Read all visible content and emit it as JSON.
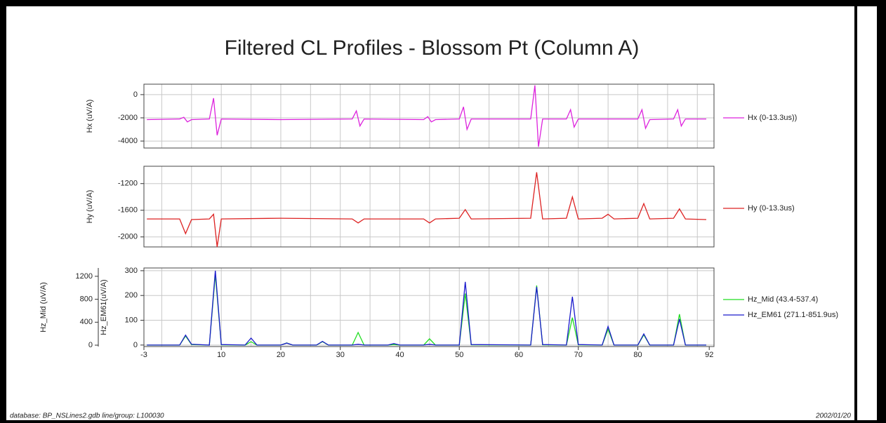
{
  "header": {
    "title": "Filtered CL Profiles - Blossom Pt (Column A)"
  },
  "footer": {
    "left": "database: BP_NSLines2.gdb  line/group: L100030",
    "right": "2002/01/20"
  },
  "chart_data": [
    {
      "type": "line",
      "ylabel": "Hx (uV/A)",
      "xlim": [
        -3,
        92.8
      ],
      "x_grid": [
        0,
        5,
        10,
        15,
        20,
        25,
        30,
        35,
        40,
        45,
        50,
        55,
        60,
        65,
        70,
        75,
        80,
        85,
        90
      ],
      "ylim": [
        -4600,
        900
      ],
      "yticks": [
        0,
        -2000,
        -4000
      ],
      "grid": true,
      "x": [
        -2.5,
        3,
        3.7,
        4.3,
        5,
        8,
        8.7,
        9.3,
        10,
        20,
        32,
        32.7,
        33.3,
        34,
        44,
        44.7,
        45.3,
        46,
        50,
        50.7,
        51.3,
        52,
        62,
        62.7,
        63.3,
        64,
        68,
        68.7,
        69.3,
        70,
        80,
        80.7,
        81.3,
        82,
        86,
        86.7,
        87.3,
        88,
        91.5
      ],
      "series": [
        {
          "name": "Hx (0-13.3us))",
          "color": "#dd22dd",
          "values": [
            -2150,
            -2100,
            -1950,
            -2350,
            -2150,
            -2100,
            -300,
            -3500,
            -2100,
            -2150,
            -2100,
            -1400,
            -2700,
            -2100,
            -2150,
            -1900,
            -2350,
            -2150,
            -2100,
            -1050,
            -3000,
            -2100,
            -2100,
            800,
            -4500,
            -2100,
            -2100,
            -1300,
            -2800,
            -2100,
            -2100,
            -1300,
            -2900,
            -2150,
            -2100,
            -1300,
            -2700,
            -2100,
            -2100
          ]
        }
      ]
    },
    {
      "type": "line",
      "ylabel": "Hy (uV/A)",
      "xlim": [
        -3,
        92.8
      ],
      "x_grid": [
        0,
        5,
        10,
        15,
        20,
        25,
        30,
        35,
        40,
        45,
        50,
        55,
        60,
        65,
        70,
        75,
        80,
        85,
        90
      ],
      "ylim": [
        -2150,
        -940
      ],
      "yticks": [
        -1200,
        -1600,
        -2000
      ],
      "grid": true,
      "x": [
        -2.5,
        3,
        4,
        5,
        8,
        8.7,
        9.3,
        10,
        20,
        32,
        33,
        34,
        44,
        45,
        46,
        50,
        51,
        52,
        62,
        63,
        64,
        68,
        69,
        70,
        74,
        75,
        76,
        80,
        81,
        82,
        86,
        87,
        88,
        91.5
      ],
      "series": [
        {
          "name": "Hy (0-13.3us)",
          "color": "#dd2222",
          "values": [
            -1730,
            -1730,
            -1950,
            -1740,
            -1730,
            -1660,
            -2150,
            -1730,
            -1720,
            -1730,
            -1790,
            -1730,
            -1730,
            -1790,
            -1730,
            -1720,
            -1590,
            -1730,
            -1720,
            -1030,
            -1730,
            -1720,
            -1400,
            -1730,
            -1720,
            -1660,
            -1730,
            -1720,
            -1500,
            -1730,
            -1720,
            -1580,
            -1730,
            -1740
          ]
        }
      ]
    },
    {
      "type": "line",
      "ylabel": "Hz_EM61(uV/A)",
      "y2label": "Hz_Mid (uV/A)",
      "xlim": [
        -3,
        92.8
      ],
      "xticks": [
        -3,
        10,
        20,
        30,
        40,
        50,
        60,
        70,
        80,
        92
      ],
      "x_grid": [
        0,
        5,
        10,
        15,
        20,
        25,
        30,
        35,
        40,
        45,
        50,
        55,
        60,
        65,
        70,
        75,
        80,
        85,
        90
      ],
      "ylim": [
        -6,
        311
      ],
      "yticks": [
        0,
        100,
        200,
        300
      ],
      "y2lim": [
        -24,
        1345
      ],
      "y2ticks": [
        0,
        400,
        800,
        1200
      ],
      "grid": true,
      "x": [
        -2.5,
        3,
        4,
        5,
        8,
        9,
        10,
        14,
        15,
        16,
        20,
        21,
        22,
        26,
        27,
        28,
        32,
        33,
        34,
        38,
        39,
        40,
        44,
        45,
        46,
        50,
        51,
        52,
        62,
        63,
        64,
        68,
        69,
        70,
        74,
        75,
        76,
        80,
        81,
        82,
        86,
        87,
        88,
        91.5
      ],
      "series": [
        {
          "name": "Hz_Mid (43.4-537.4)",
          "color": "#22dd22",
          "axis": "y2",
          "values": [
            0,
            0,
            160,
            10,
            0,
            1230,
            5,
            0,
            60,
            0,
            0,
            40,
            0,
            0,
            60,
            0,
            0,
            220,
            0,
            0,
            10,
            0,
            0,
            110,
            0,
            0,
            900,
            5,
            0,
            1040,
            5,
            0,
            480,
            5,
            0,
            280,
            0,
            0,
            180,
            0,
            0,
            540,
            0,
            0
          ]
        },
        {
          "name": "Hz_EM61 (271.1-851.9us)",
          "color": "#1a1acc",
          "values": [
            0,
            0,
            40,
            3,
            0,
            300,
            2,
            0,
            28,
            0,
            0,
            8,
            0,
            0,
            15,
            0,
            0,
            3,
            0,
            0,
            6,
            0,
            0,
            3,
            0,
            0,
            255,
            2,
            0,
            235,
            2,
            0,
            195,
            2,
            0,
            75,
            0,
            0,
            45,
            0,
            0,
            105,
            0,
            0
          ]
        }
      ]
    }
  ]
}
